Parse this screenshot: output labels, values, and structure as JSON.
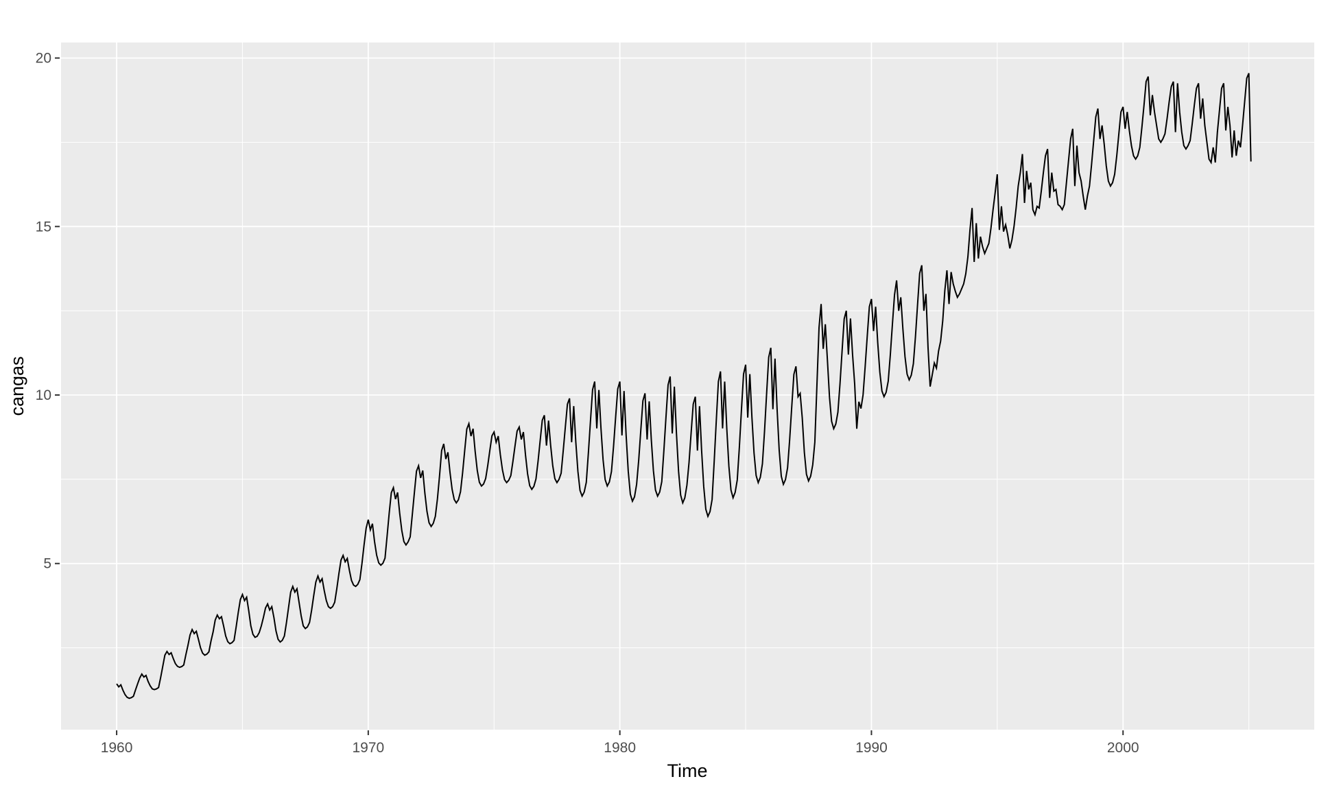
{
  "chart_data": {
    "type": "line",
    "title": "",
    "xlabel": "Time",
    "ylabel": "cangas",
    "series_name": "cangas",
    "description_visible": "",
    "x_start": 1960,
    "frequency": 12,
    "x_ticks": [
      1960,
      1970,
      1980,
      1990,
      2000
    ],
    "x_tick_labels": [
      "1960",
      "1970",
      "1980",
      "1990",
      "2000"
    ],
    "x_minor_breaks": [
      1965,
      1975,
      1985,
      1995,
      2005
    ],
    "y_ticks": [
      5,
      10,
      15,
      20
    ],
    "y_tick_labels": [
      "5",
      "10",
      "15",
      "20"
    ],
    "y_minor_breaks": [
      2.5,
      7.5,
      12.5,
      17.5
    ],
    "xlim": [
      1957.79,
      2007.6
    ],
    "ylim": [
      0.07,
      20.46
    ],
    "grid": true,
    "legend": "none",
    "colors": {
      "line": "#000000",
      "panel_background": "#EBEBEB",
      "grid": "#FFFFFF",
      "tick_label": "#4D4D4D",
      "tick_mark": "#333333",
      "axis_title": "#000000",
      "figure_background": "#FFFFFF"
    },
    "line_width": 2,
    "values": [
      1.43,
      1.34,
      1.4,
      1.24,
      1.11,
      1.03,
      1.0,
      1.02,
      1.06,
      1.25,
      1.43,
      1.6,
      1.72,
      1.63,
      1.68,
      1.5,
      1.37,
      1.28,
      1.26,
      1.28,
      1.32,
      1.62,
      1.95,
      2.28,
      2.39,
      2.3,
      2.35,
      2.18,
      2.03,
      1.95,
      1.92,
      1.94,
      1.99,
      2.29,
      2.57,
      2.88,
      3.04,
      2.92,
      2.99,
      2.75,
      2.5,
      2.34,
      2.28,
      2.31,
      2.38,
      2.7,
      2.97,
      3.32,
      3.47,
      3.36,
      3.42,
      3.15,
      2.85,
      2.68,
      2.62,
      2.65,
      2.72,
      3.12,
      3.55,
      3.93,
      4.08,
      3.9,
      4.0,
      3.6,
      3.15,
      2.9,
      2.81,
      2.84,
      2.95,
      3.15,
      3.4,
      3.68,
      3.8,
      3.62,
      3.72,
      3.4,
      3.0,
      2.75,
      2.67,
      2.72,
      2.85,
      3.25,
      3.7,
      4.15,
      4.32,
      4.15,
      4.25,
      3.85,
      3.45,
      3.15,
      3.07,
      3.12,
      3.25,
      3.62,
      4.05,
      4.45,
      4.63,
      4.45,
      4.55,
      4.2,
      3.9,
      3.72,
      3.67,
      3.72,
      3.85,
      4.25,
      4.7,
      5.1,
      5.24,
      5.05,
      5.15,
      4.8,
      4.5,
      4.36,
      4.32,
      4.38,
      4.52,
      5.0,
      5.55,
      6.05,
      6.3,
      6.0,
      6.18,
      5.65,
      5.25,
      5.02,
      4.95,
      5.01,
      5.16,
      5.82,
      6.5,
      7.1,
      7.25,
      6.91,
      7.11,
      6.49,
      5.98,
      5.65,
      5.55,
      5.64,
      5.79,
      6.44,
      7.1,
      7.74,
      7.9,
      7.54,
      7.76,
      7.09,
      6.55,
      6.21,
      6.1,
      6.19,
      6.4,
      6.92,
      7.6,
      8.35,
      8.55,
      8.1,
      8.3,
      7.7,
      7.2,
      6.9,
      6.8,
      6.89,
      7.13,
      7.69,
      8.35,
      8.99,
      9.15,
      8.78,
      9.0,
      8.32,
      7.76,
      7.41,
      7.3,
      7.36,
      7.52,
      7.91,
      8.36,
      8.79,
      8.9,
      8.6,
      8.78,
      8.23,
      7.78,
      7.49,
      7.4,
      7.47,
      7.61,
      8.03,
      8.49,
      8.93,
      9.05,
      8.68,
      8.9,
      8.22,
      7.66,
      7.31,
      7.2,
      7.29,
      7.51,
      8.04,
      8.65,
      9.25,
      9.4,
      8.5,
      9.24,
      8.5,
      7.9,
      7.52,
      7.4,
      7.5,
      7.68,
      8.35,
      9.05,
      9.73,
      9.9,
      8.6,
      9.67,
      8.6,
      7.73,
      7.17,
      7.0,
      7.12,
      7.41,
      8.29,
      9.24,
      10.16,
      10.4,
      9.01,
      10.15,
      9.01,
      8.08,
      7.49,
      7.3,
      7.42,
      7.73,
      8.48,
      9.35,
      10.18,
      10.4,
      8.8,
      10.12,
      8.8,
      7.74,
      7.06,
      6.85,
      6.98,
      7.35,
      8.07,
      8.96,
      9.83,
      10.05,
      8.68,
      9.81,
      8.68,
      7.76,
      7.18,
      7.0,
      7.12,
      7.43,
      8.35,
      9.34,
      10.3,
      10.55,
      8.86,
      10.25,
      8.86,
      7.74,
      7.03,
      6.8,
      6.95,
      7.33,
      8.0,
      8.88,
      9.73,
      9.95,
      8.35,
      9.67,
      8.35,
      7.29,
      6.61,
      6.4,
      6.54,
      6.9,
      8.03,
      9.24,
      10.4,
      10.7,
      9.01,
      10.4,
      9.01,
      7.89,
      7.18,
      6.95,
      7.11,
      7.48,
      8.45,
      9.56,
      10.62,
      10.9,
      9.33,
      10.62,
      9.33,
      8.28,
      7.61,
      7.4,
      7.56,
      7.96,
      8.92,
      10.04,
      11.12,
      11.4,
      9.58,
      11.08,
      9.58,
      8.36,
      7.59,
      7.35,
      7.49,
      7.84,
      8.68,
      9.66,
      10.61,
      10.85,
      9.95,
      10.05,
      9.32,
      8.3,
      7.65,
      7.45,
      7.59,
      7.93,
      8.6,
      10.3,
      12.0,
      12.7,
      11.37,
      12.1,
      11.04,
      9.93,
      9.22,
      9.0,
      9.14,
      9.49,
      10.33,
      11.31,
      12.26,
      12.5,
      11.2,
      12.27,
      11.2,
      10.33,
      9.0,
      9.8,
      9.6,
      10.0,
      10.84,
      11.75,
      12.62,
      12.85,
      11.9,
      12.62,
      11.55,
      10.68,
      10.12,
      9.95,
      10.08,
      10.41,
      11.19,
      12.1,
      12.97,
      13.4,
      12.5,
      12.9,
      11.96,
      11.14,
      10.62,
      10.45,
      10.59,
      10.93,
      11.74,
      12.69,
      13.61,
      13.85,
      12.5,
      13.0,
      11.4,
      10.25,
      10.6,
      10.95,
      10.8,
      11.3,
      11.6,
      12.2,
      13.1,
      13.7,
      12.7,
      13.65,
      13.3,
      13.08,
      12.9,
      13.0,
      13.15,
      13.3,
      13.6,
      14.1,
      14.9,
      15.55,
      13.95,
      15.1,
      14.05,
      14.7,
      14.4,
      14.2,
      14.35,
      14.5,
      14.95,
      15.5,
      16.0,
      16.55,
      14.9,
      15.6,
      14.85,
      15.05,
      14.75,
      14.35,
      14.6,
      15.0,
      15.55,
      16.2,
      16.6,
      17.15,
      15.7,
      16.65,
      16.1,
      16.3,
      15.5,
      15.35,
      15.6,
      15.55,
      16.05,
      16.6,
      17.1,
      17.3,
      15.85,
      16.6,
      16.05,
      16.1,
      15.65,
      15.6,
      15.5,
      15.65,
      16.3,
      16.95,
      17.6,
      17.9,
      16.2,
      17.4,
      16.6,
      16.35,
      15.9,
      15.5,
      15.9,
      16.2,
      16.85,
      17.55,
      18.25,
      18.5,
      17.6,
      18.0,
      17.45,
      16.8,
      16.35,
      16.2,
      16.3,
      16.55,
      17.1,
      17.75,
      18.4,
      18.55,
      17.9,
      18.4,
      17.85,
      17.4,
      17.1,
      17.0,
      17.1,
      17.35,
      17.95,
      18.6,
      19.3,
      19.45,
      18.3,
      18.9,
      18.4,
      18.0,
      17.6,
      17.5,
      17.6,
      17.75,
      18.2,
      18.7,
      19.15,
      19.3,
      17.8,
      19.25,
      18.4,
      17.8,
      17.4,
      17.3,
      17.4,
      17.55,
      18.05,
      18.6,
      19.1,
      19.25,
      18.2,
      18.8,
      18.0,
      17.5,
      17.0,
      16.9,
      17.35,
      16.9,
      17.8,
      18.45,
      19.1,
      19.25,
      17.85,
      18.55,
      18.0,
      17.05,
      17.85,
      17.1,
      17.55,
      17.35,
      18.0,
      18.7,
      19.4,
      19.55,
      16.93
    ]
  }
}
